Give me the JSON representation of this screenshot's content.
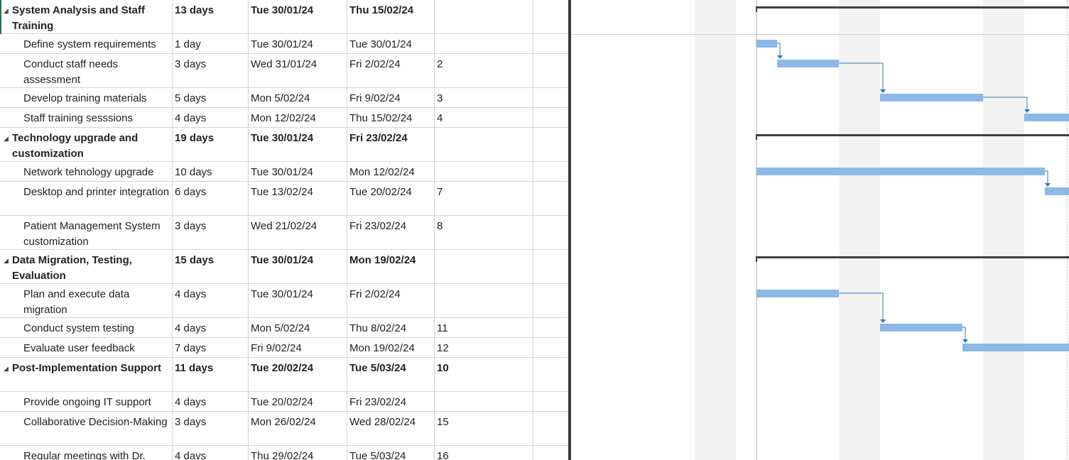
{
  "colors": {
    "bar": "#8db8e8",
    "summary_bar": "#404040",
    "link": "#2e75b6",
    "weekend_shade": "#f2f2f2",
    "today_line": "#8fbc8f"
  },
  "rows": [
    {
      "name": "System Analysis and Staff Training",
      "duration": "13 days",
      "start": "Tue 30/01/24",
      "finish": "Thu 15/02/24",
      "pred": "",
      "summary": true,
      "tall": true
    },
    {
      "name": "Define system requirements",
      "duration": "1 day",
      "start": "Tue 30/01/24",
      "finish": "Tue 30/01/24",
      "pred": "",
      "summary": false,
      "tall": false
    },
    {
      "name": "Conduct staff needs assessment",
      "duration": "3 days",
      "start": "Wed 31/01/24",
      "finish": "Fri 2/02/24",
      "pred": "2",
      "summary": false,
      "tall": true
    },
    {
      "name": "Develop training materials",
      "duration": "5 days",
      "start": "Mon 5/02/24",
      "finish": "Fri 9/02/24",
      "pred": "3",
      "summary": false,
      "tall": false
    },
    {
      "name": "Staff training sesssions",
      "duration": "4 days",
      "start": "Mon 12/02/24",
      "finish": "Thu 15/02/24",
      "pred": "4",
      "summary": false,
      "tall": false
    },
    {
      "name": "Technology upgrade and customization",
      "duration": "19 days",
      "start": "Tue 30/01/24",
      "finish": "Fri 23/02/24",
      "pred": "",
      "summary": true,
      "tall": true
    },
    {
      "name": "Network tehnology upgrade",
      "duration": "10 days",
      "start": "Tue 30/01/24",
      "finish": "Mon 12/02/24",
      "pred": "",
      "summary": false,
      "tall": false
    },
    {
      "name": "Desktop and printer integration",
      "duration": "6 days",
      "start": "Tue 13/02/24",
      "finish": "Tue 20/02/24",
      "pred": "7",
      "summary": false,
      "tall": true
    },
    {
      "name": "Patient Management System customization",
      "duration": "3 days",
      "start": "Wed 21/02/24",
      "finish": "Fri 23/02/24",
      "pred": "8",
      "summary": false,
      "tall": true
    },
    {
      "name": "Data Migration, Testing, Evaluation",
      "duration": "15 days",
      "start": "Tue 30/01/24",
      "finish": "Mon 19/02/24",
      "pred": "",
      "summary": true,
      "tall": true
    },
    {
      "name": "Plan and execute data migration",
      "duration": "4 days",
      "start": "Tue 30/01/24",
      "finish": "Fri 2/02/24",
      "pred": "",
      "summary": false,
      "tall": true
    },
    {
      "name": "Conduct system testing",
      "duration": "4 days",
      "start": "Mon 5/02/24",
      "finish": "Thu 8/02/24",
      "pred": "11",
      "summary": false,
      "tall": false
    },
    {
      "name": "Evaluate user feedback",
      "duration": "7 days",
      "start": "Fri 9/02/24",
      "finish": "Mon 19/02/24",
      "pred": "12",
      "summary": false,
      "tall": false
    },
    {
      "name": "Post-Implementation Support",
      "duration": "11 days",
      "start": "Tue 20/02/24",
      "finish": "Tue 5/03/24",
      "pred": "10",
      "summary": true,
      "tall": true
    },
    {
      "name": "Provide ongoing IT support",
      "duration": "4 days",
      "start": "Tue 20/02/24",
      "finish": "Fri 23/02/24",
      "pred": "",
      "summary": false,
      "tall": false
    },
    {
      "name": "Collaborative Decision-Making",
      "duration": "3 days",
      "start": "Mon 26/02/24",
      "finish": "Wed 28/02/24",
      "pred": "15",
      "summary": false,
      "tall": true
    },
    {
      "name": "Regular meetings with Dr.",
      "duration": "4 days",
      "start": "Thu 29/02/24",
      "finish": "Tue 5/03/24",
      "pred": "16",
      "summary": false,
      "tall": false
    }
  ]
}
